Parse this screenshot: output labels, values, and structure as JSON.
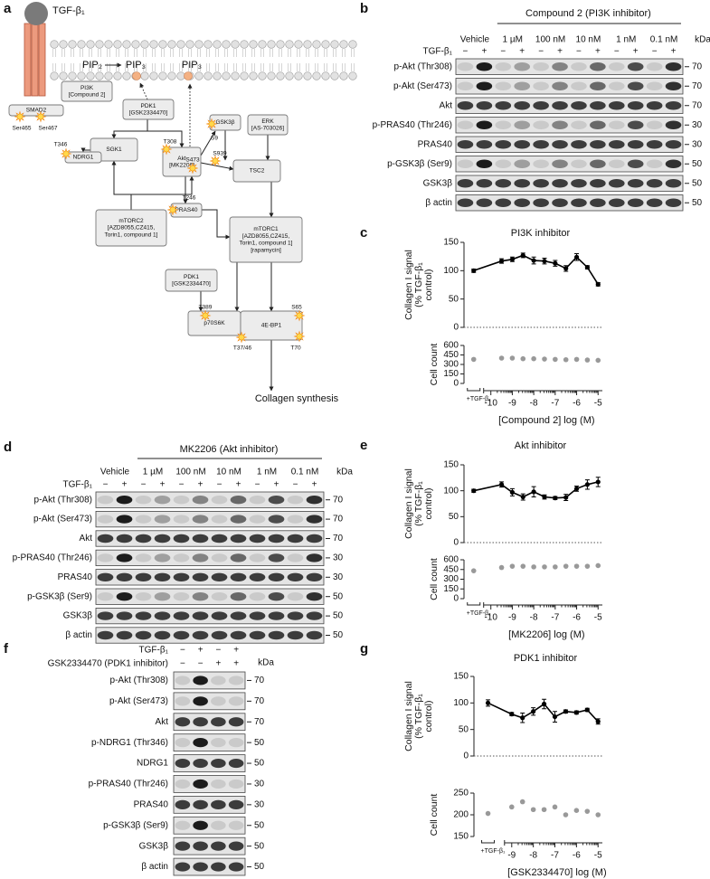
{
  "panel_labels": [
    "a",
    "b",
    "c",
    "d",
    "e",
    "f",
    "g"
  ],
  "diagram": {
    "ligand": "TGF-β₁",
    "lipids": [
      "PIP₂",
      "PIP₃",
      "PIP₃"
    ],
    "nodes": [
      [
        "SMAD2"
      ],
      [
        "PI3K",
        "[Compound 2]"
      ],
      [
        "PDK1",
        "[GSK2334470]"
      ],
      [
        "SGK1"
      ],
      [
        "Akt",
        "[MK2206]"
      ],
      [
        "GSK3β"
      ],
      [
        "ERK",
        "[AS-703026]"
      ],
      [
        "TSC2"
      ],
      [
        "NDRG1"
      ],
      [
        "mTORC2",
        "[AZD8055,CZ415,",
        "Torin1, compound 1]"
      ],
      [
        "PRAS40"
      ],
      [
        "mTORC1",
        "[AZD8055,CZ415,",
        "Torin1, compound 1]",
        "[rapamycin]"
      ],
      [
        "PDK1",
        "[GSK2334470]"
      ],
      [
        "p70S6K"
      ],
      [
        "4E-BP1"
      ]
    ],
    "sites": [
      "Ser465",
      "Ser467",
      "T308",
      "S473",
      "T346",
      "S9",
      "S939",
      "T246",
      "T389",
      "S65",
      "T37/46",
      "T70"
    ],
    "output": "Collagen synthesis"
  },
  "blots": [
    {
      "header": "Compound 2 (PI3K inhibitor)",
      "lane_groups": [
        "Vehicle",
        "1 µM",
        "100 nM",
        "10 nM",
        "1 nM",
        "0.1 nM"
      ],
      "treatments": [
        {
          "label": "TGF-β₁",
          "signs": [
            "−",
            "+",
            "−",
            "+",
            "−",
            "+",
            "−",
            "+",
            "−",
            "+",
            "−",
            "+"
          ]
        }
      ],
      "kda_label": "kDa",
      "rows": [
        {
          "label": "p-Akt (Thr308)",
          "kda": 70
        },
        {
          "label": "p-Akt (Ser473)",
          "kda": 70
        },
        {
          "label": "Akt",
          "kda": 70
        },
        {
          "label": "p-PRAS40 (Thr246)",
          "kda": 30
        },
        {
          "label": "PRAS40",
          "kda": 30
        },
        {
          "label": "p-GSK3β (Ser9)",
          "kda": 50
        },
        {
          "label": "GSK3β",
          "kda": 50
        },
        {
          "label": "β actin",
          "kda": 50
        }
      ]
    },
    {
      "header": "MK2206 (Akt inhibitor)",
      "lane_groups": [
        "Vehicle",
        "1 µM",
        "100 nM",
        "10 nM",
        "1 nM",
        "0.1 nM"
      ],
      "treatments": [
        {
          "label": "TGF-β₁",
          "signs": [
            "−",
            "+",
            "−",
            "+",
            "−",
            "+",
            "−",
            "+",
            "−",
            "+",
            "−",
            "+"
          ]
        }
      ],
      "kda_label": "kDa",
      "rows": [
        {
          "label": "p-Akt (Thr308)",
          "kda": 70
        },
        {
          "label": "p-Akt (Ser473)",
          "kda": 70
        },
        {
          "label": "Akt",
          "kda": 70
        },
        {
          "label": "p-PRAS40 (Thr246)",
          "kda": 30
        },
        {
          "label": "PRAS40",
          "kda": 30
        },
        {
          "label": "p-GSK3β (Ser9)",
          "kda": 50
        },
        {
          "label": "GSK3β",
          "kda": 50
        },
        {
          "label": "β actin",
          "kda": 50
        }
      ]
    },
    {
      "treatments": [
        {
          "label": "TGF-β₁",
          "signs": [
            "−",
            "+",
            "−",
            "+"
          ]
        },
        {
          "label": "GSK2334470 (PDK1 inhibitor)",
          "signs": [
            "−",
            "−",
            "+",
            "+"
          ]
        }
      ],
      "kda_label": "kDa",
      "rows": [
        {
          "label": "p-Akt (Thr308)",
          "kda": 70
        },
        {
          "label": "p-Akt (Ser473)",
          "kda": 70
        },
        {
          "label": "Akt",
          "kda": 70
        },
        {
          "label": "p-NDRG1 (Thr346)",
          "kda": 50
        },
        {
          "label": "NDRG1",
          "kda": 50
        },
        {
          "label": "p-PRAS40 (Thr246)",
          "kda": 30
        },
        {
          "label": "PRAS40",
          "kda": 30
        },
        {
          "label": "p-GSK3β (Ser9)",
          "kda": 50
        },
        {
          "label": "GSK3β",
          "kda": 50
        },
        {
          "label": "β actin",
          "kda": 50
        }
      ]
    }
  ],
  "chart_data": [
    {
      "type": "line",
      "title": "PI3K inhibitor",
      "x": [
        -10.8,
        -9.5,
        -9,
        -8.5,
        -8,
        -7.5,
        -7,
        -6.5,
        -6,
        -5.5,
        -5
      ],
      "xlim": [
        -11,
        -4.8
      ],
      "xticks": [
        -10,
        -9,
        -8,
        -7,
        -6,
        -5
      ],
      "xlabel": "[Compound 2] log (M)",
      "control_label": "+TGF-β₁",
      "collagen": {
        "ylabel": [
          "Collagen I signal",
          "(% TGF-β₁",
          "control)"
        ],
        "ylim": [
          0,
          150
        ],
        "yticks": [
          0,
          50,
          100,
          150
        ],
        "color": "#000000",
        "values": [
          100,
          117,
          120,
          127,
          118,
          117,
          113,
          104,
          124,
          106,
          76
        ],
        "errors": [
          3,
          4,
          4,
          4,
          6,
          5,
          5,
          5,
          6,
          3,
          3
        ]
      },
      "cell_count": {
        "ylabel": "Cell count",
        "ylim": [
          0,
          600
        ],
        "yticks": [
          0,
          150,
          300,
          450,
          600
        ],
        "color": "#999999",
        "values": [
          380,
          400,
          400,
          390,
          390,
          385,
          380,
          375,
          380,
          370,
          365
        ]
      }
    },
    {
      "type": "line",
      "title": "Akt inhibitor",
      "x": [
        -10.8,
        -9.5,
        -9,
        -8.5,
        -8,
        -7.5,
        -7,
        -6.5,
        -6,
        -5.5,
        -5
      ],
      "xlim": [
        -11,
        -4.8
      ],
      "xticks": [
        -10,
        -9,
        -8,
        -7,
        -6,
        -5
      ],
      "xlabel": "[MK2206] log (M)",
      "control_label": "+TGF-β₁",
      "collagen": {
        "ylabel": [
          "Collagen I signal",
          "(% TGF-β₁",
          "control)"
        ],
        "ylim": [
          0,
          150
        ],
        "yticks": [
          0,
          50,
          100,
          150
        ],
        "color": "#000000",
        "values": [
          100,
          112,
          97,
          88,
          98,
          88,
          86,
          87,
          104,
          112,
          117
        ],
        "errors": [
          3,
          5,
          7,
          6,
          10,
          4,
          3,
          6,
          5,
          9,
          9
        ]
      },
      "cell_count": {
        "ylabel": "Cell count",
        "ylim": [
          0,
          600
        ],
        "yticks": [
          0,
          150,
          300,
          450,
          600
        ],
        "color": "#999999",
        "values": [
          430,
          480,
          500,
          500,
          490,
          490,
          490,
          500,
          500,
          500,
          510
        ]
      }
    },
    {
      "type": "line",
      "title": "PDK1 inhibitor",
      "x": [
        -10.1,
        -9,
        -8.5,
        -8,
        -7.5,
        -7,
        -6.5,
        -6,
        -5.5,
        -5
      ],
      "xlim": [
        -10.5,
        -4.8
      ],
      "xticks": [
        -9,
        -8,
        -7,
        -6,
        -5
      ],
      "xlabel": "[GSK2334470] log (M)",
      "control_label": "+TGF-β₁",
      "collagen": {
        "ylabel": [
          "Collagen I signal",
          "(% TGF-β₁",
          "control)"
        ],
        "ylim": [
          0,
          150
        ],
        "yticks": [
          0,
          50,
          100,
          150
        ],
        "color": "#000000",
        "values": [
          100,
          79,
          72,
          84,
          98,
          74,
          84,
          82,
          87,
          65
        ],
        "errors": [
          6,
          3,
          9,
          7,
          9,
          10,
          3,
          3,
          3,
          5
        ]
      },
      "cell_count": {
        "ylabel": "Cell count",
        "ylim": [
          150,
          250
        ],
        "yticks": [
          150,
          200,
          250
        ],
        "color": "#999999",
        "values": [
          203,
          218,
          230,
          212,
          212,
          218,
          200,
          210,
          208,
          200
        ]
      }
    }
  ]
}
